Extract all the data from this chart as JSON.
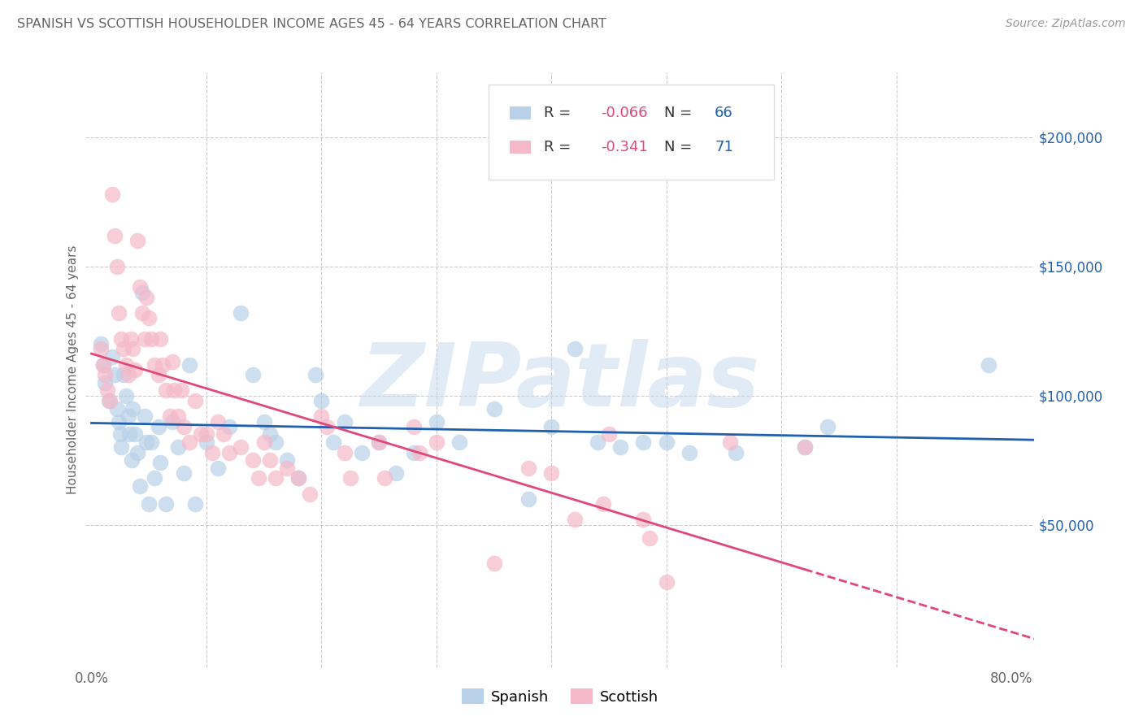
{
  "title": "SPANISH VS SCOTTISH HOUSEHOLDER INCOME AGES 45 - 64 YEARS CORRELATION CHART",
  "source": "Source: ZipAtlas.com",
  "ylabel": "Householder Income Ages 45 - 64 years",
  "xlim": [
    -0.005,
    0.82
  ],
  "ylim": [
    -5000,
    225000
  ],
  "yticks": [
    0,
    50000,
    100000,
    150000,
    200000
  ],
  "xticks": [
    0.0,
    0.1,
    0.2,
    0.3,
    0.4,
    0.5,
    0.6,
    0.7,
    0.8
  ],
  "xtick_labels": [
    "0.0%",
    "",
    "",
    "",
    "",
    "",
    "",
    "",
    "80.0%"
  ],
  "watermark": "ZIPatlas",
  "spanish_color": "#b8d0e8",
  "scottish_color": "#f5b8c8",
  "spanish_line_color": "#2060b0",
  "scottish_line_color": "#e04878",
  "background_color": "#ffffff",
  "grid_color": "#cccccc",
  "title_color": "#666666",
  "ytick_label_color": "#2060b0",
  "spanish_x": [
    0.008,
    0.01,
    0.012,
    0.015,
    0.018,
    0.02,
    0.022,
    0.024,
    0.025,
    0.026,
    0.028,
    0.03,
    0.032,
    0.033,
    0.035,
    0.036,
    0.038,
    0.04,
    0.042,
    0.044,
    0.046,
    0.048,
    0.05,
    0.052,
    0.055,
    0.058,
    0.06,
    0.065,
    0.07,
    0.075,
    0.08,
    0.085,
    0.09,
    0.1,
    0.11,
    0.12,
    0.13,
    0.14,
    0.15,
    0.155,
    0.16,
    0.17,
    0.18,
    0.195,
    0.2,
    0.21,
    0.22,
    0.235,
    0.25,
    0.265,
    0.28,
    0.3,
    0.32,
    0.35,
    0.38,
    0.4,
    0.42,
    0.44,
    0.46,
    0.48,
    0.5,
    0.52,
    0.56,
    0.62,
    0.64,
    0.78
  ],
  "spanish_y": [
    120000,
    112000,
    105000,
    98000,
    115000,
    108000,
    95000,
    90000,
    85000,
    80000,
    108000,
    100000,
    92000,
    85000,
    75000,
    95000,
    85000,
    78000,
    65000,
    140000,
    92000,
    82000,
    58000,
    82000,
    68000,
    88000,
    74000,
    58000,
    90000,
    80000,
    70000,
    112000,
    58000,
    82000,
    72000,
    88000,
    132000,
    108000,
    90000,
    85000,
    82000,
    75000,
    68000,
    108000,
    98000,
    82000,
    90000,
    78000,
    82000,
    70000,
    78000,
    90000,
    82000,
    95000,
    60000,
    88000,
    118000,
    82000,
    80000,
    82000,
    82000,
    78000,
    78000,
    80000,
    88000,
    112000
  ],
  "scottish_x": [
    0.008,
    0.01,
    0.012,
    0.014,
    0.016,
    0.018,
    0.02,
    0.022,
    0.024,
    0.026,
    0.028,
    0.03,
    0.032,
    0.034,
    0.036,
    0.038,
    0.04,
    0.042,
    0.044,
    0.046,
    0.048,
    0.05,
    0.052,
    0.055,
    0.058,
    0.06,
    0.062,
    0.065,
    0.068,
    0.07,
    0.072,
    0.075,
    0.078,
    0.08,
    0.085,
    0.09,
    0.095,
    0.1,
    0.105,
    0.11,
    0.115,
    0.12,
    0.13,
    0.14,
    0.145,
    0.15,
    0.155,
    0.16,
    0.17,
    0.18,
    0.19,
    0.2,
    0.205,
    0.22,
    0.225,
    0.25,
    0.255,
    0.28,
    0.285,
    0.3,
    0.35,
    0.38,
    0.4,
    0.42,
    0.445,
    0.45,
    0.48,
    0.485,
    0.5,
    0.555,
    0.62
  ],
  "scottish_y": [
    118000,
    112000,
    108000,
    102000,
    98000,
    178000,
    162000,
    150000,
    132000,
    122000,
    118000,
    112000,
    108000,
    122000,
    118000,
    110000,
    160000,
    142000,
    132000,
    122000,
    138000,
    130000,
    122000,
    112000,
    108000,
    122000,
    112000,
    102000,
    92000,
    113000,
    102000,
    92000,
    102000,
    88000,
    82000,
    98000,
    85000,
    85000,
    78000,
    90000,
    85000,
    78000,
    80000,
    75000,
    68000,
    82000,
    75000,
    68000,
    72000,
    68000,
    62000,
    92000,
    88000,
    78000,
    68000,
    82000,
    68000,
    88000,
    78000,
    82000,
    35000,
    72000,
    70000,
    52000,
    58000,
    85000,
    52000,
    45000,
    28000,
    82000,
    80000
  ]
}
